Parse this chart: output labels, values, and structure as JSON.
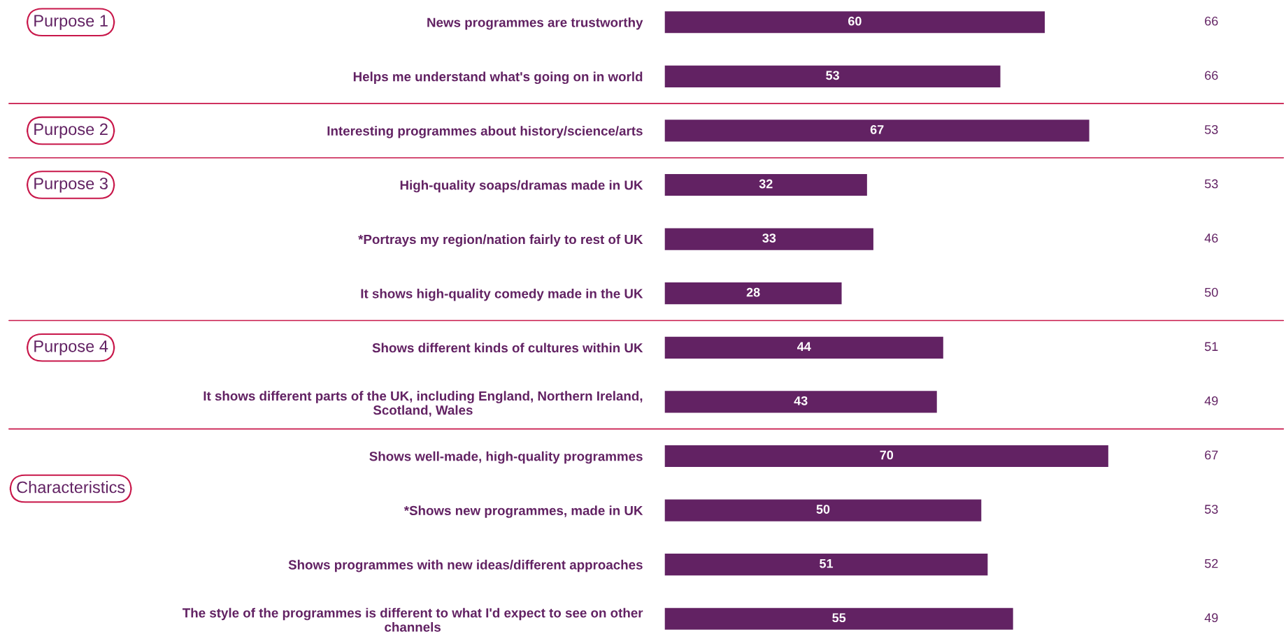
{
  "chart_data": {
    "type": "bar",
    "orientation": "horizontal",
    "categories": [
      "News programmes are trustworthy",
      "Helps me understand what's going on in world",
      "Interesting programmes about history/science/arts",
      "High-quality soaps/dramas made in UK",
      "*Portrays my region/nation fairly to rest of UK",
      "It shows high-quality comedy made in the UK",
      "Shows different kinds of cultures within UK",
      "It shows different parts of the UK, including England, Northern Ireland,\nScotland, Wales",
      "Shows well-made, high-quality programmes",
      "*Shows new programmes, made in UK",
      "Shows programmes with new ideas/different approaches",
      "The style of the programmes is different to what I'd expect to see on other\nchannels"
    ],
    "values": [
      60,
      53,
      67,
      32,
      33,
      28,
      44,
      43,
      70,
      50,
      51,
      55
    ],
    "color": "#622263",
    "data_labels": true,
    "tick_labels": "y",
    "annotations": [
      "66",
      "66",
      "53",
      "53",
      "46",
      "50",
      "51",
      "49",
      "67",
      "53",
      "52",
      "49",
      "Purpose 1",
      "Purpose 2",
      "Purpose 3",
      "Purpose 4",
      "Characteristics"
    ]
  }
}
